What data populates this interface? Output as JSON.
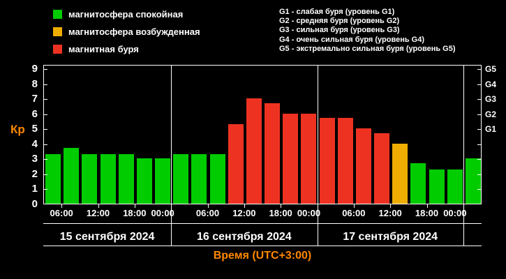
{
  "legend": {
    "items": [
      {
        "label": "магнитосфера спокойная",
        "level": "quiet"
      },
      {
        "label": "магнитосфера возбужденная",
        "level": "excited"
      },
      {
        "label": "магнитная буря",
        "level": "storm"
      }
    ]
  },
  "storm_levels": [
    "G1 - слабая буря (уровень G1)",
    "G2 - средняя буря (уровень G2)",
    "G3 - сильная буря (уровень G3)",
    "G4 - очень сильная буря (уровень G4)",
    "G5 - экстремально сильная буря (уровень G5)"
  ],
  "colors": {
    "quiet": "#00cc00",
    "excited": "#efad00",
    "storm": "#ee3222",
    "accent": "#ff8800",
    "axis": "#ffffff",
    "background": "#000000"
  },
  "chart_data": {
    "type": "bar",
    "ylabel": "Кр",
    "xlabel": "Время (UTC+3:00)",
    "ylim": [
      0,
      9.3
    ],
    "y_ticks": [
      0,
      1,
      2,
      3,
      4,
      5,
      6,
      7,
      8,
      9
    ],
    "g_levels": [
      {
        "label": "G1",
        "kp": 5
      },
      {
        "label": "G2",
        "kp": 6
      },
      {
        "label": "G3",
        "kp": 7
      },
      {
        "label": "G4",
        "kp": 8
      },
      {
        "label": "G5",
        "kp": 9
      }
    ],
    "time_ticks": [
      "06:00",
      "12:00",
      "18:00",
      "00:00"
    ],
    "days": [
      {
        "date": "15 сентября 2024",
        "start_hour": 3,
        "bars": [
          {
            "kp": 3.3,
            "level": "quiet"
          },
          {
            "kp": 3.7,
            "level": "quiet"
          },
          {
            "kp": 3.3,
            "level": "quiet"
          },
          {
            "kp": 3.3,
            "level": "quiet"
          },
          {
            "kp": 3.3,
            "level": "quiet"
          },
          {
            "kp": 3.0,
            "level": "quiet"
          },
          {
            "kp": 3.0,
            "level": "quiet"
          }
        ]
      },
      {
        "date": "16 сентября 2024",
        "start_hour": 0,
        "bars": [
          {
            "kp": 3.3,
            "level": "quiet"
          },
          {
            "kp": 3.3,
            "level": "quiet"
          },
          {
            "kp": 3.3,
            "level": "quiet"
          },
          {
            "kp": 5.3,
            "level": "storm"
          },
          {
            "kp": 7.0,
            "level": "storm"
          },
          {
            "kp": 6.7,
            "level": "storm"
          },
          {
            "kp": 6.0,
            "level": "storm"
          },
          {
            "kp": 6.0,
            "level": "storm"
          }
        ]
      },
      {
        "date": "17 сентября 2024",
        "start_hour": 0,
        "bars": [
          {
            "kp": 5.7,
            "level": "storm"
          },
          {
            "kp": 5.7,
            "level": "storm"
          },
          {
            "kp": 5.0,
            "level": "storm"
          },
          {
            "kp": 4.7,
            "level": "storm"
          },
          {
            "kp": 4.0,
            "level": "excited"
          },
          {
            "kp": 2.7,
            "level": "quiet"
          },
          {
            "kp": 2.3,
            "level": "quiet"
          },
          {
            "kp": 2.3,
            "level": "quiet"
          }
        ]
      },
      {
        "date": "",
        "start_hour": 0,
        "bars": [
          {
            "kp": 3.0,
            "level": "quiet"
          }
        ]
      }
    ]
  }
}
